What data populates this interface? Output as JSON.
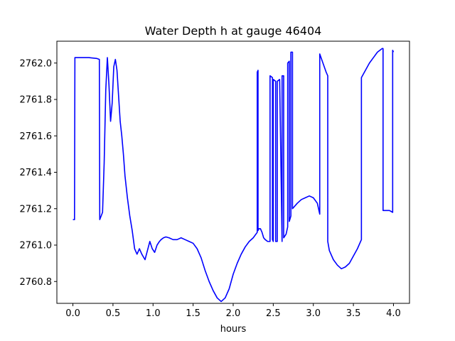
{
  "chart_data": {
    "type": "line",
    "title": "Water Depth h at gauge 46404",
    "xlabel": "hours",
    "ylabel": "",
    "xlim": [
      -0.2,
      4.2
    ],
    "ylim": [
      2760.68,
      2762.12
    ],
    "xticks": [
      0.0,
      0.5,
      1.0,
      1.5,
      2.0,
      2.5,
      3.0,
      3.5,
      4.0
    ],
    "xtick_labels": [
      "0.0",
      "0.5",
      "1.0",
      "1.5",
      "2.0",
      "2.5",
      "3.0",
      "3.5",
      "4.0"
    ],
    "yticks": [
      2760.8,
      2761.0,
      2761.2,
      2761.4,
      2761.6,
      2761.8,
      2762.0
    ],
    "ytick_labels": [
      "2760.8",
      "2761.0",
      "2761.2",
      "2761.4",
      "2761.6",
      "2761.8",
      "2762.0"
    ],
    "grid": false,
    "series": [
      {
        "color": "#0000ff",
        "x": [
          0.0,
          0.02,
          0.025,
          0.1,
          0.2,
          0.3,
          0.33,
          0.335,
          0.37,
          0.39,
          0.41,
          0.43,
          0.45,
          0.47,
          0.49,
          0.51,
          0.53,
          0.55,
          0.57,
          0.59,
          0.61,
          0.63,
          0.65,
          0.68,
          0.71,
          0.74,
          0.77,
          0.8,
          0.83,
          0.86,
          0.9,
          0.93,
          0.96,
          0.99,
          1.02,
          1.05,
          1.08,
          1.1,
          1.13,
          1.16,
          1.2,
          1.25,
          1.3,
          1.35,
          1.4,
          1.45,
          1.5,
          1.55,
          1.6,
          1.65,
          1.7,
          1.75,
          1.8,
          1.85,
          1.9,
          1.95,
          2.0,
          2.05,
          2.1,
          2.15,
          2.2,
          2.25,
          2.3,
          2.3,
          2.31,
          2.31,
          2.32,
          2.34,
          2.36,
          2.38,
          2.4,
          2.43,
          2.46,
          2.46,
          2.49,
          2.49,
          2.5,
          2.5,
          2.53,
          2.53,
          2.55,
          2.55,
          2.58,
          2.61,
          2.61,
          2.63,
          2.63,
          2.66,
          2.68,
          2.68,
          2.7,
          2.7,
          2.72,
          2.72,
          2.74,
          2.74,
          2.76,
          2.8,
          2.85,
          2.9,
          2.95,
          3.0,
          3.05,
          3.08,
          3.08,
          3.12,
          3.16,
          3.18,
          3.18,
          3.2,
          3.25,
          3.3,
          3.35,
          3.4,
          3.45,
          3.5,
          3.55,
          3.6,
          3.6,
          3.65,
          3.7,
          3.75,
          3.8,
          3.86,
          3.87,
          3.87,
          3.9,
          3.95,
          3.99,
          3.99,
          4.0,
          4.0
        ],
        "y": [
          2761.14,
          2761.14,
          2762.03,
          2762.03,
          2762.03,
          2762.025,
          2762.02,
          2761.14,
          2761.18,
          2761.45,
          2761.85,
          2762.03,
          2761.88,
          2761.68,
          2761.78,
          2761.98,
          2762.02,
          2761.96,
          2761.82,
          2761.68,
          2761.6,
          2761.5,
          2761.38,
          2761.26,
          2761.16,
          2761.08,
          2760.98,
          2760.95,
          2760.98,
          2760.95,
          2760.92,
          2760.97,
          2761.02,
          2760.98,
          2760.96,
          2761.0,
          2761.02,
          2761.03,
          2761.04,
          2761.045,
          2761.04,
          2761.03,
          2761.03,
          2761.04,
          2761.03,
          2761.02,
          2761.01,
          2760.98,
          2760.93,
          2760.86,
          2760.8,
          2760.75,
          2760.71,
          2760.69,
          2760.71,
          2760.76,
          2760.84,
          2760.9,
          2760.95,
          2760.99,
          2761.02,
          2761.04,
          2761.07,
          2761.95,
          2761.96,
          2761.08,
          2761.09,
          2761.09,
          2761.07,
          2761.04,
          2761.03,
          2761.02,
          2761.02,
          2761.93,
          2761.92,
          2761.03,
          2761.02,
          2761.91,
          2761.9,
          2761.02,
          2761.02,
          2761.9,
          2761.91,
          2761.02,
          2761.93,
          2761.93,
          2761.04,
          2761.06,
          2761.1,
          2762.0,
          2762.01,
          2761.13,
          2761.16,
          2762.06,
          2762.06,
          2761.2,
          2761.21,
          2761.23,
          2761.25,
          2761.26,
          2761.27,
          2761.26,
          2761.23,
          2761.17,
          2762.05,
          2762.0,
          2761.95,
          2761.93,
          2761.02,
          2760.97,
          2760.92,
          2760.89,
          2760.87,
          2760.88,
          2760.9,
          2760.94,
          2760.98,
          2761.03,
          2761.92,
          2761.96,
          2762.0,
          2762.03,
          2762.06,
          2762.08,
          2762.08,
          2761.19,
          2761.19,
          2761.19,
          2761.18,
          2762.07,
          2762.06,
          2762.06
        ]
      }
    ]
  }
}
